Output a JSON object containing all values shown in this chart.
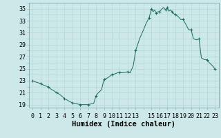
{
  "xlabel": "Humidex (Indice chaleur)",
  "background_color": "#cce8e8",
  "plot_bg_color": "#cce8e8",
  "line_color": "#1a6b5a",
  "marker_color": "#1a6b5a",
  "ylim": [
    18.5,
    36
  ],
  "xlim": [
    -0.5,
    23.5
  ],
  "yticks": [
    19,
    21,
    23,
    25,
    27,
    29,
    31,
    33,
    35
  ],
  "xtick_positions": [
    0,
    1,
    2,
    3,
    4,
    5,
    6,
    7,
    8,
    9,
    10,
    11,
    12,
    13,
    15,
    16,
    17,
    18,
    19,
    20,
    21,
    22,
    23
  ],
  "xtick_labels": [
    "0",
    "1",
    "2",
    "3",
    "4",
    "5",
    "6",
    "7",
    "8",
    "9",
    "10",
    "11",
    "12",
    "13",
    "15",
    "16",
    "17",
    "18",
    "19",
    "20",
    "21",
    "22",
    "23"
  ],
  "x": [
    0,
    0.3,
    0.6,
    1.0,
    1.3,
    1.7,
    2.0,
    2.3,
    2.7,
    3.0,
    3.3,
    3.7,
    4.0,
    4.3,
    4.7,
    5.0,
    5.3,
    5.7,
    6.0,
    6.3,
    6.7,
    7.0,
    7.3,
    7.7,
    8.0,
    8.3,
    8.7,
    9.0,
    9.5,
    10.0,
    10.3,
    10.7,
    11.0,
    11.3,
    11.7,
    12.0,
    12.3,
    12.7,
    13.0,
    13.5,
    14.0,
    14.3,
    14.7,
    15.0,
    15.2,
    15.4,
    15.6,
    15.8,
    16.0,
    16.2,
    16.5,
    16.8,
    17.0,
    17.2,
    17.4,
    17.6,
    17.8,
    18.0,
    18.3,
    18.7,
    19.0,
    19.3,
    19.7,
    20.0,
    20.3,
    20.7,
    21.0,
    21.3,
    21.7,
    22.0,
    22.3,
    22.7,
    23.0
  ],
  "y": [
    23.0,
    22.8,
    22.7,
    22.5,
    22.3,
    22.1,
    21.9,
    21.6,
    21.3,
    21.0,
    20.8,
    20.4,
    20.0,
    19.8,
    19.5,
    19.3,
    19.2,
    19.1,
    19.0,
    19.0,
    19.0,
    19.0,
    19.1,
    19.2,
    20.5,
    21.0,
    21.5,
    23.2,
    23.5,
    24.0,
    24.1,
    24.3,
    24.4,
    24.3,
    24.4,
    24.5,
    24.3,
    25.5,
    28.0,
    30.0,
    31.5,
    32.5,
    33.5,
    35.0,
    34.5,
    34.8,
    34.3,
    34.5,
    34.5,
    34.8,
    35.2,
    34.8,
    35.2,
    34.6,
    34.8,
    34.5,
    34.2,
    34.0,
    33.8,
    33.2,
    33.2,
    32.5,
    31.5,
    31.5,
    30.0,
    29.8,
    30.0,
    26.8,
    26.5,
    26.5,
    26.0,
    25.5,
    25.0
  ],
  "marker_x": [
    0,
    1,
    2,
    3,
    4,
    5,
    6,
    7,
    8,
    9,
    10,
    11,
    12,
    13,
    14.7,
    15.0,
    15.6,
    16.0,
    16.8,
    17.0,
    17.6,
    18.0,
    19.0,
    20.0,
    21.0,
    22.0,
    23.0
  ],
  "marker_y": [
    23.0,
    22.5,
    21.9,
    21.0,
    20.0,
    19.3,
    19.0,
    19.0,
    20.5,
    23.2,
    24.0,
    24.4,
    24.5,
    28.0,
    33.5,
    35.0,
    34.3,
    34.5,
    34.8,
    35.2,
    34.5,
    34.0,
    33.2,
    31.5,
    30.0,
    26.5,
    25.0
  ],
  "grid_color": "#b0d4d4",
  "spine_color": "#8aafaf",
  "tick_fontsize": 6,
  "label_fontsize": 7.5
}
